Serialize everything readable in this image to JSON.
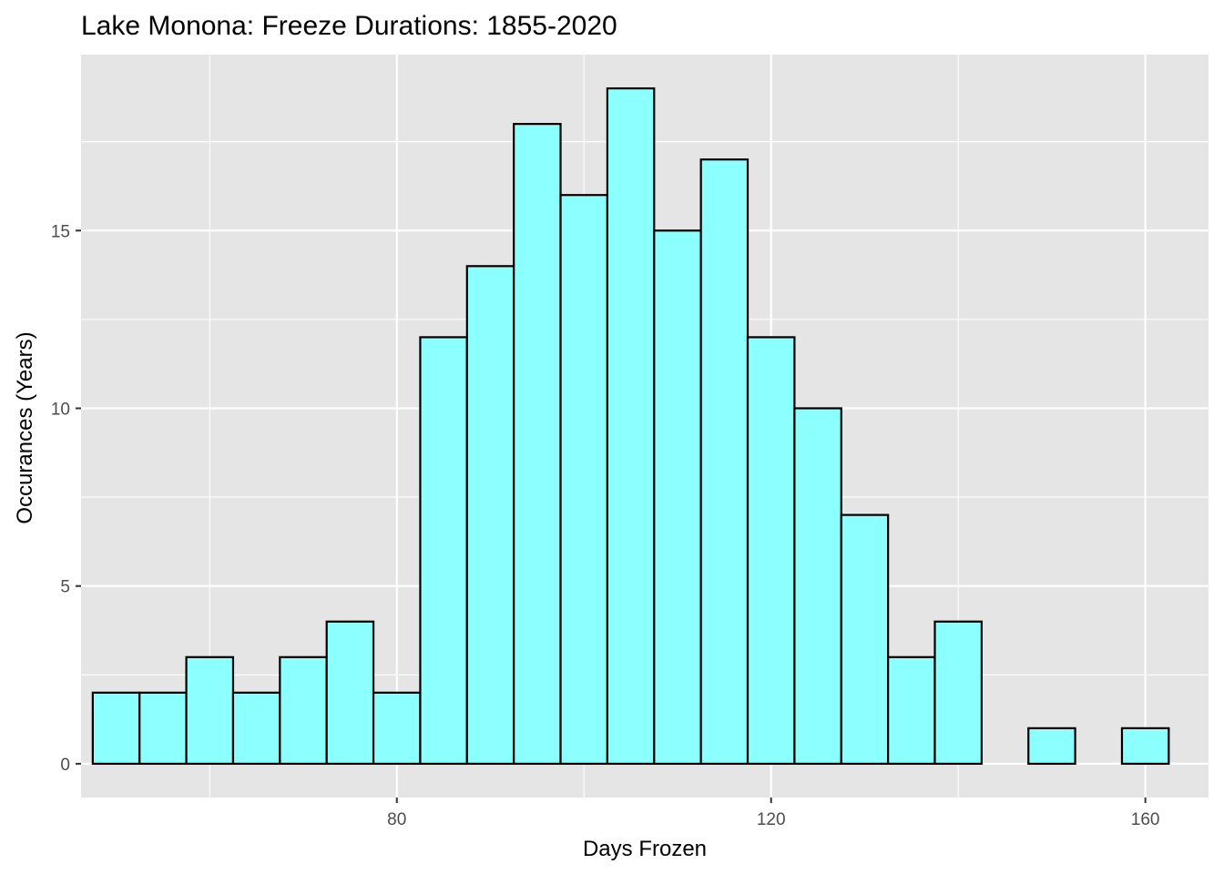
{
  "chart_data": {
    "type": "bar",
    "title": "Lake Monona: Freeze Durations: 1855-2020",
    "xlabel": "Days Frozen",
    "ylabel": "Occurances (Years)",
    "xlim": [
      46.25,
      166.75
    ],
    "ylim": [
      -0.95,
      19.95
    ],
    "x_ticks": [
      80,
      120,
      160
    ],
    "y_ticks": [
      0,
      5,
      10,
      15
    ],
    "bin_width": 5,
    "bins": [
      {
        "start": 47.5,
        "end": 52.5,
        "count": 2
      },
      {
        "start": 52.5,
        "end": 57.5,
        "count": 2
      },
      {
        "start": 57.5,
        "end": 62.5,
        "count": 3
      },
      {
        "start": 62.5,
        "end": 67.5,
        "count": 2
      },
      {
        "start": 67.5,
        "end": 72.5,
        "count": 3
      },
      {
        "start": 72.5,
        "end": 77.5,
        "count": 4
      },
      {
        "start": 77.5,
        "end": 82.5,
        "count": 2
      },
      {
        "start": 82.5,
        "end": 87.5,
        "count": 12
      },
      {
        "start": 87.5,
        "end": 92.5,
        "count": 14
      },
      {
        "start": 92.5,
        "end": 97.5,
        "count": 18
      },
      {
        "start": 97.5,
        "end": 102.5,
        "count": 16
      },
      {
        "start": 102.5,
        "end": 107.5,
        "count": 19
      },
      {
        "start": 107.5,
        "end": 112.5,
        "count": 15
      },
      {
        "start": 112.5,
        "end": 117.5,
        "count": 17
      },
      {
        "start": 117.5,
        "end": 122.5,
        "count": 12
      },
      {
        "start": 122.5,
        "end": 127.5,
        "count": 10
      },
      {
        "start": 127.5,
        "end": 132.5,
        "count": 7
      },
      {
        "start": 132.5,
        "end": 137.5,
        "count": 3
      },
      {
        "start": 137.5,
        "end": 142.5,
        "count": 4
      },
      {
        "start": 142.5,
        "end": 147.5,
        "count": 0
      },
      {
        "start": 147.5,
        "end": 152.5,
        "count": 1
      },
      {
        "start": 152.5,
        "end": 157.5,
        "count": 0
      },
      {
        "start": 157.5,
        "end": 162.5,
        "count": 1
      }
    ],
    "grid": true,
    "legend": "none",
    "colors": {
      "bar_fill": "#8cffff",
      "bar_outline": "#000000",
      "panel_background": "#e5e5e5",
      "grid_line": "#ffffff"
    }
  }
}
